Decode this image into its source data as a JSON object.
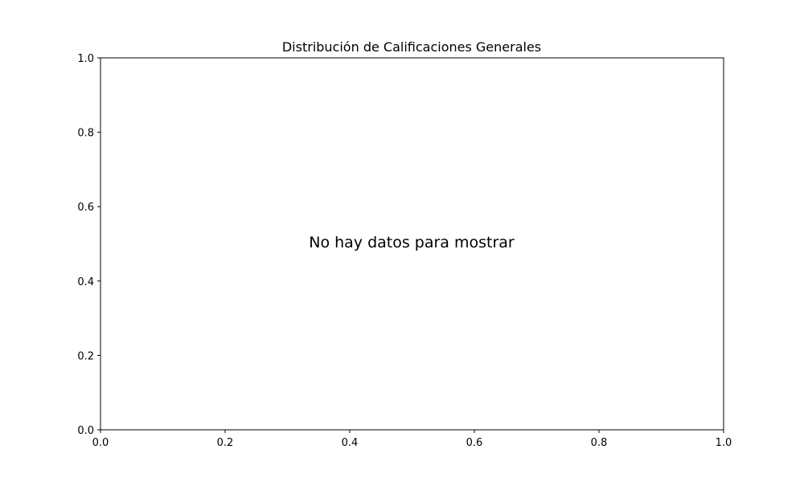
{
  "chart_data": {
    "type": "bar",
    "title": "Distribución de Calificaciones Generales",
    "xlabel": "",
    "ylabel": "",
    "xlim": [
      0.0,
      1.0
    ],
    "ylim": [
      0.0,
      1.0
    ],
    "x_ticks": [
      "0.0",
      "0.2",
      "0.4",
      "0.6",
      "0.8",
      "1.0"
    ],
    "y_ticks": [
      "0.0",
      "0.2",
      "0.4",
      "0.6",
      "0.8",
      "1.0"
    ],
    "categories": [],
    "values": [],
    "annotation": "No hay datos para mostrar",
    "grid": false,
    "legend": "none"
  }
}
